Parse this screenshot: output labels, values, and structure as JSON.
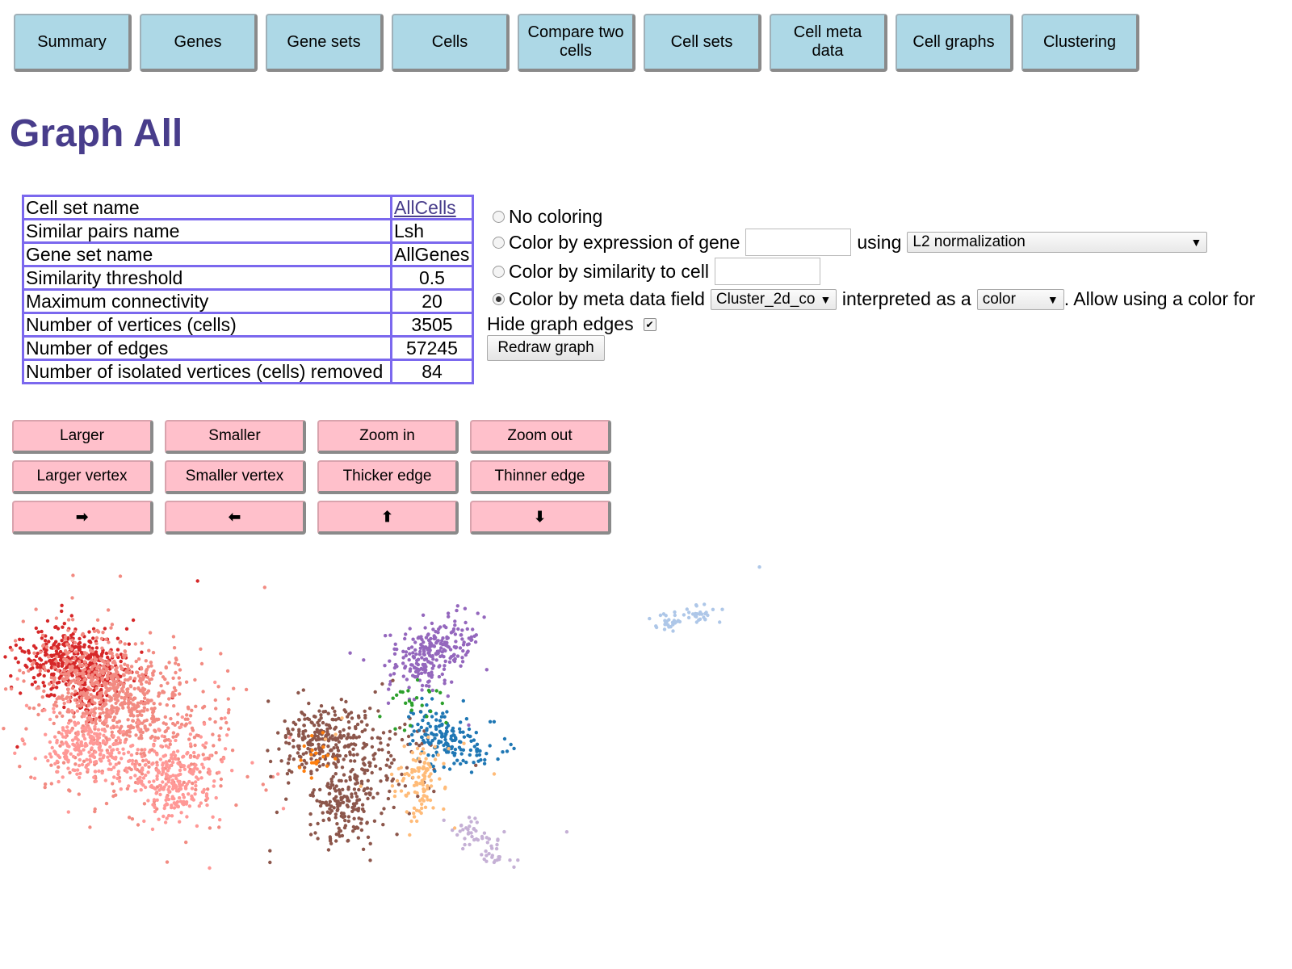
{
  "nav": [
    {
      "label": "Summary",
      "name": "nav-summary"
    },
    {
      "label": "Genes",
      "name": "nav-genes"
    },
    {
      "label": "Gene sets",
      "name": "nav-gene-sets"
    },
    {
      "label": "Cells",
      "name": "nav-cells"
    },
    {
      "label": "Compare two cells",
      "name": "nav-compare-two-cells"
    },
    {
      "label": "Cell sets",
      "name": "nav-cell-sets"
    },
    {
      "label": "Cell meta data",
      "name": "nav-cell-meta-data"
    },
    {
      "label": "Cell graphs",
      "name": "nav-cell-graphs"
    },
    {
      "label": "Clustering",
      "name": "nav-clustering"
    }
  ],
  "page_title": "Graph All",
  "info_table": {
    "rows": [
      {
        "label": "Cell set name",
        "value": "AllCells"
      },
      {
        "label": "Similar pairs name",
        "value": "Lsh"
      },
      {
        "label": "Gene set name",
        "value": "AllGenes"
      },
      {
        "label": "Similarity threshold",
        "value": "0.5"
      },
      {
        "label": "Maximum connectivity",
        "value": "20"
      },
      {
        "label": "Number of vertices (cells)",
        "value": "3505"
      },
      {
        "label": "Number of edges",
        "value": "57245"
      },
      {
        "label": "Number of isolated vertices (cells) removed",
        "value": "84"
      }
    ]
  },
  "coloring": {
    "no_coloring_label": "No coloring",
    "by_gene_label": "Color by expression of gene",
    "gene_value": "",
    "using_label": "using",
    "normalization_selected": "L2 normalization",
    "by_similarity_label": "Color by similarity to cell",
    "cell_value": "",
    "by_meta_label": "Color by meta data field",
    "meta_field_selected": "Cluster_2d_co",
    "interpreted_label": "interpreted as a",
    "interpretation_selected": "color",
    "allow_text": ". Allow using a color for",
    "selected_option": "meta"
  },
  "hide_edges_label": "Hide graph edges",
  "hide_edges_checked": true,
  "redraw_label": "Redraw graph",
  "view_buttons": [
    {
      "label": "Larger",
      "name": "larger-button"
    },
    {
      "label": "Smaller",
      "name": "smaller-button"
    },
    {
      "label": "Zoom in",
      "name": "zoom-in-button"
    },
    {
      "label": "Zoom out",
      "name": "zoom-out-button"
    },
    {
      "label": "Larger vertex",
      "name": "larger-vertex-button"
    },
    {
      "label": "Smaller vertex",
      "name": "smaller-vertex-button"
    },
    {
      "label": "Thicker edge",
      "name": "thicker-edge-button"
    },
    {
      "label": "Thinner edge",
      "name": "thinner-edge-button"
    },
    {
      "label": "➡",
      "name": "pan-right-button",
      "icon": "right-arrow-icon"
    },
    {
      "label": "⬅",
      "name": "pan-left-button",
      "icon": "left-arrow-icon"
    },
    {
      "label": "⬆",
      "name": "pan-up-button",
      "icon": "up-arrow-icon"
    },
    {
      "label": "⬇",
      "name": "pan-down-button",
      "icon": "down-arrow-icon"
    }
  ],
  "graph_clusters": [
    {
      "color": "#d62728",
      "count": 500
    },
    {
      "color": "#f28b82",
      "count": 900
    },
    {
      "color": "#ff9896",
      "count": 500
    },
    {
      "color": "#9467bd",
      "count": 260
    },
    {
      "color": "#8c564b",
      "count": 520
    },
    {
      "color": "#1f77b4",
      "count": 170
    },
    {
      "color": "#ffbb78",
      "count": 110
    },
    {
      "color": "#2ca02c",
      "count": 25
    },
    {
      "color": "#ff7f0e",
      "count": 20
    },
    {
      "color": "#c5b0d5",
      "count": 60
    },
    {
      "color": "#aec7e8",
      "count": 55
    }
  ]
}
